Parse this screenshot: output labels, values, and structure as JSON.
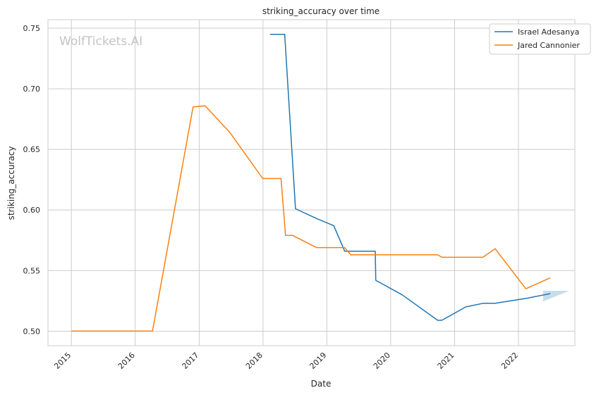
{
  "chart_data": {
    "type": "line",
    "title": "striking_accuracy over time",
    "xlabel": "Date",
    "ylabel": "striking_accuracy",
    "watermark": "WolfTickets.AI",
    "xlim": [
      "2014-08-20",
      "2022-11-20"
    ],
    "ylim": [
      0.488,
      0.757
    ],
    "x_ticks": [
      "2015",
      "2016",
      "2017",
      "2018",
      "2019",
      "2020",
      "2021",
      "2022"
    ],
    "y_ticks": [
      "0.50",
      "0.55",
      "0.60",
      "0.65",
      "0.70",
      "0.75"
    ],
    "grid": true,
    "legend_position": "top-right",
    "series": [
      {
        "name": "Israel Adesanya",
        "color": "#1f77b4",
        "points": [
          [
            "2018-02-10",
            0.745
          ],
          [
            "2018-05-05",
            0.745
          ],
          [
            "2018-07-06",
            0.601
          ],
          [
            "2018-11-03",
            0.593
          ],
          [
            "2019-02-10",
            0.587
          ],
          [
            "2019-04-13",
            0.566
          ],
          [
            "2019-10-05",
            0.566
          ],
          [
            "2019-10-08",
            0.542
          ],
          [
            "2020-03-07",
            0.53
          ],
          [
            "2020-09-26",
            0.509
          ],
          [
            "2020-10-20",
            0.509
          ],
          [
            "2021-03-06",
            0.52
          ],
          [
            "2021-06-12",
            0.523
          ],
          [
            "2021-08-20",
            0.523
          ],
          [
            "2022-02-12",
            0.527
          ],
          [
            "2022-07-02",
            0.531
          ]
        ]
      },
      {
        "name": "Jared Cannonier",
        "color": "#ff7f0e",
        "points": [
          [
            "2015-01-01",
            0.5
          ],
          [
            "2016-04-09",
            0.5
          ],
          [
            "2016-11-27",
            0.685
          ],
          [
            "2017-02-04",
            0.686
          ],
          [
            "2017-06-25",
            0.664
          ],
          [
            "2017-12-30",
            0.626
          ],
          [
            "2018-04-14",
            0.626
          ],
          [
            "2018-05-10",
            0.579
          ],
          [
            "2018-06-20",
            0.579
          ],
          [
            "2018-11-03",
            0.569
          ],
          [
            "2019-04-13",
            0.569
          ],
          [
            "2019-05-18",
            0.563
          ],
          [
            "2020-09-26",
            0.563
          ],
          [
            "2020-10-20",
            0.561
          ],
          [
            "2021-06-12",
            0.561
          ],
          [
            "2021-08-21",
            0.568
          ],
          [
            "2022-02-12",
            0.535
          ],
          [
            "2022-07-02",
            0.544
          ]
        ]
      }
    ]
  }
}
